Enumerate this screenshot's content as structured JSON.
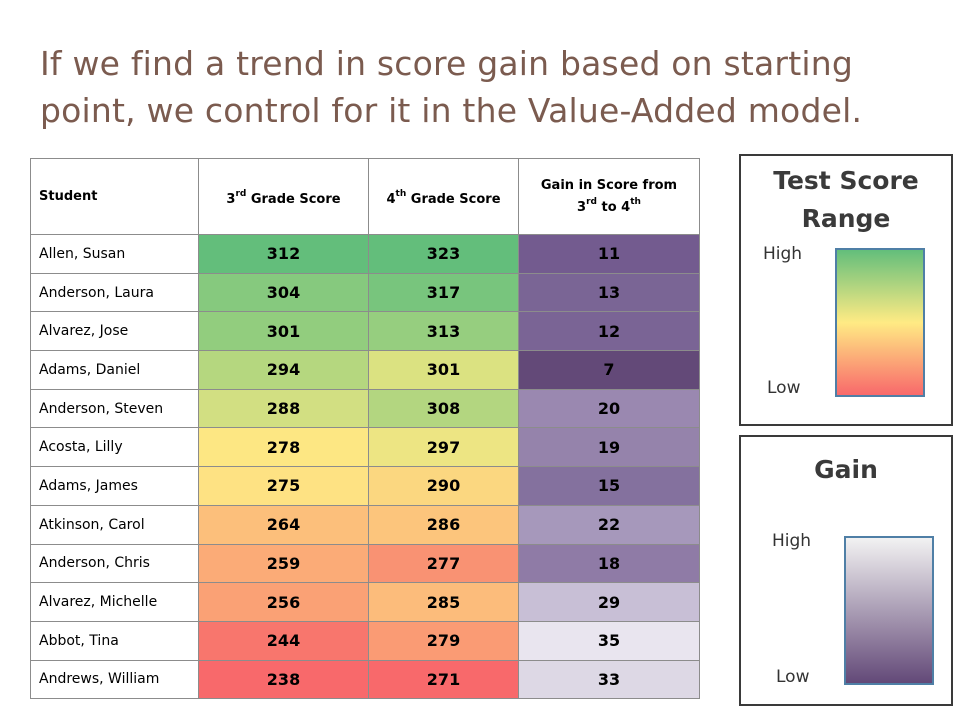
{
  "title": {
    "line1": "If we find a trend in score gain based on starting",
    "line2": "point, we control for it in the Value-Added model."
  },
  "table": {
    "headers": {
      "student": "Student",
      "grade3_num": "3",
      "grade3_sup": "rd",
      "grade3_text": " Grade Score",
      "grade4_num": "4",
      "grade4_sup": "th",
      "grade4_text": " Grade Score",
      "gain_line1": "Gain in Score from",
      "gain_num1": "3",
      "gain_sup1": "rd",
      "gain_mid": " to 4",
      "gain_sup2": "th"
    },
    "rows": [
      {
        "student": "Allen, Susan",
        "grade3": "312",
        "grade4": "323",
        "gain": "11",
        "c3": "#63be7b",
        "c4": "#63be7b",
        "cg": "#735b8f"
      },
      {
        "student": "Anderson, Laura",
        "grade3": "304",
        "grade4": "317",
        "gain": "13",
        "c3": "#86c97e",
        "c4": "#78c57d",
        "cg": "#7a6595"
      },
      {
        "student": "Alvarez, Jose",
        "grade3": "301",
        "grade4": "313",
        "gain": "12",
        "c3": "#92cd7e",
        "c4": "#96ce7f",
        "cg": "#7a6495"
      },
      {
        "student": "Adams, Daniel",
        "grade3": "294",
        "grade4": "301",
        "gain": "7",
        "c3": "#b5d77f",
        "c4": "#dbe281",
        "cg": "#634978"
      },
      {
        "student": "Anderson, Steven",
        "grade3": "288",
        "grade4": "308",
        "gain": "20",
        "c3": "#d2df82",
        "c4": "#b3d680",
        "cg": "#9a88b0"
      },
      {
        "student": "Acosta, Lilly",
        "grade3": "278",
        "grade4": "297",
        "gain": "19",
        "c3": "#fde783",
        "c4": "#ede583",
        "cg": "#9583ab"
      },
      {
        "student": "Adams, James",
        "grade3": "275",
        "grade4": "290",
        "gain": "15",
        "c3": "#fee283",
        "c4": "#fbd780",
        "cg": "#84719e"
      },
      {
        "student": "Atkinson, Carol",
        "grade3": "264",
        "grade4": "286",
        "gain": "22",
        "c3": "#fcbf7b",
        "c4": "#fcc57c",
        "cg": "#a698bb"
      },
      {
        "student": "Anderson, Chris",
        "grade3": "259",
        "grade4": "277",
        "gain": "18",
        "c3": "#fbab77",
        "c4": "#f99273",
        "cg": "#8f7ba6"
      },
      {
        "student": "Alvarez, Michelle",
        "grade3": "256",
        "grade4": "285",
        "gain": "29",
        "c3": "#faa175",
        "c4": "#fcbc7b",
        "cg": "#c8bfd6"
      },
      {
        "student": "Abbot, Tina",
        "grade3": "244",
        "grade4": "279",
        "gain": "35",
        "c3": "#f8766d",
        "c4": "#fa9b74",
        "cg": "#e9e5ef"
      },
      {
        "student": "Andrews, William",
        "grade3": "238",
        "grade4": "271",
        "gain": "33",
        "c3": "#f8696b",
        "c4": "#f8696b",
        "cg": "#ddd8e5"
      }
    ]
  },
  "legend_score": {
    "title_line1": "Test Score",
    "title_line2": "Range",
    "high": "High",
    "low": "Low",
    "gradient": [
      "#63be7b",
      "#ffeb84",
      "#f8696b"
    ]
  },
  "legend_gain": {
    "title": "Gain",
    "high": "High",
    "low": "Low",
    "gradient": [
      "#f2f2f2",
      "#634978"
    ]
  }
}
